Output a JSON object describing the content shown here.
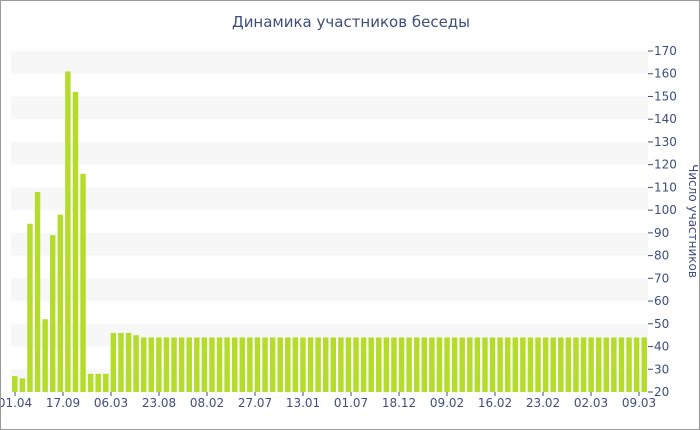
{
  "chart_data": {
    "type": "bar",
    "title": "Динамика участников беседы",
    "xlabel": "",
    "ylabel": "Число участников",
    "ylim": [
      20,
      170
    ],
    "yticks": [
      20,
      30,
      40,
      50,
      60,
      70,
      80,
      90,
      100,
      110,
      120,
      130,
      140,
      150,
      160,
      170
    ],
    "xtick_labels": [
      "01.04",
      "17.09",
      "06.03",
      "23.08",
      "08.02",
      "27.07",
      "13.01",
      "01.07",
      "18.12",
      "09.02",
      "16.02",
      "23.02",
      "02.03",
      "09.03"
    ],
    "grid": "alternating horizontal bands",
    "axis_position": "right",
    "bar_color": "#b5dc2b",
    "values": [
      27,
      26,
      94,
      108,
      52,
      89,
      98,
      161,
      152,
      116,
      28,
      28,
      28,
      46,
      46,
      46,
      45,
      44,
      44,
      44,
      44,
      44,
      44,
      44,
      44,
      44,
      44,
      44,
      44,
      44,
      44,
      44,
      44,
      44,
      44,
      44,
      44,
      44,
      44,
      44,
      44,
      44,
      44,
      44,
      44,
      44,
      44,
      44,
      44,
      44,
      44,
      44,
      44,
      44,
      44,
      44,
      44,
      44,
      44,
      44,
      44,
      44,
      44,
      44,
      44,
      44,
      44,
      44,
      44,
      44,
      44,
      44,
      44,
      44,
      44,
      44,
      44,
      44,
      44,
      44,
      44,
      44,
      44,
      44
    ]
  }
}
